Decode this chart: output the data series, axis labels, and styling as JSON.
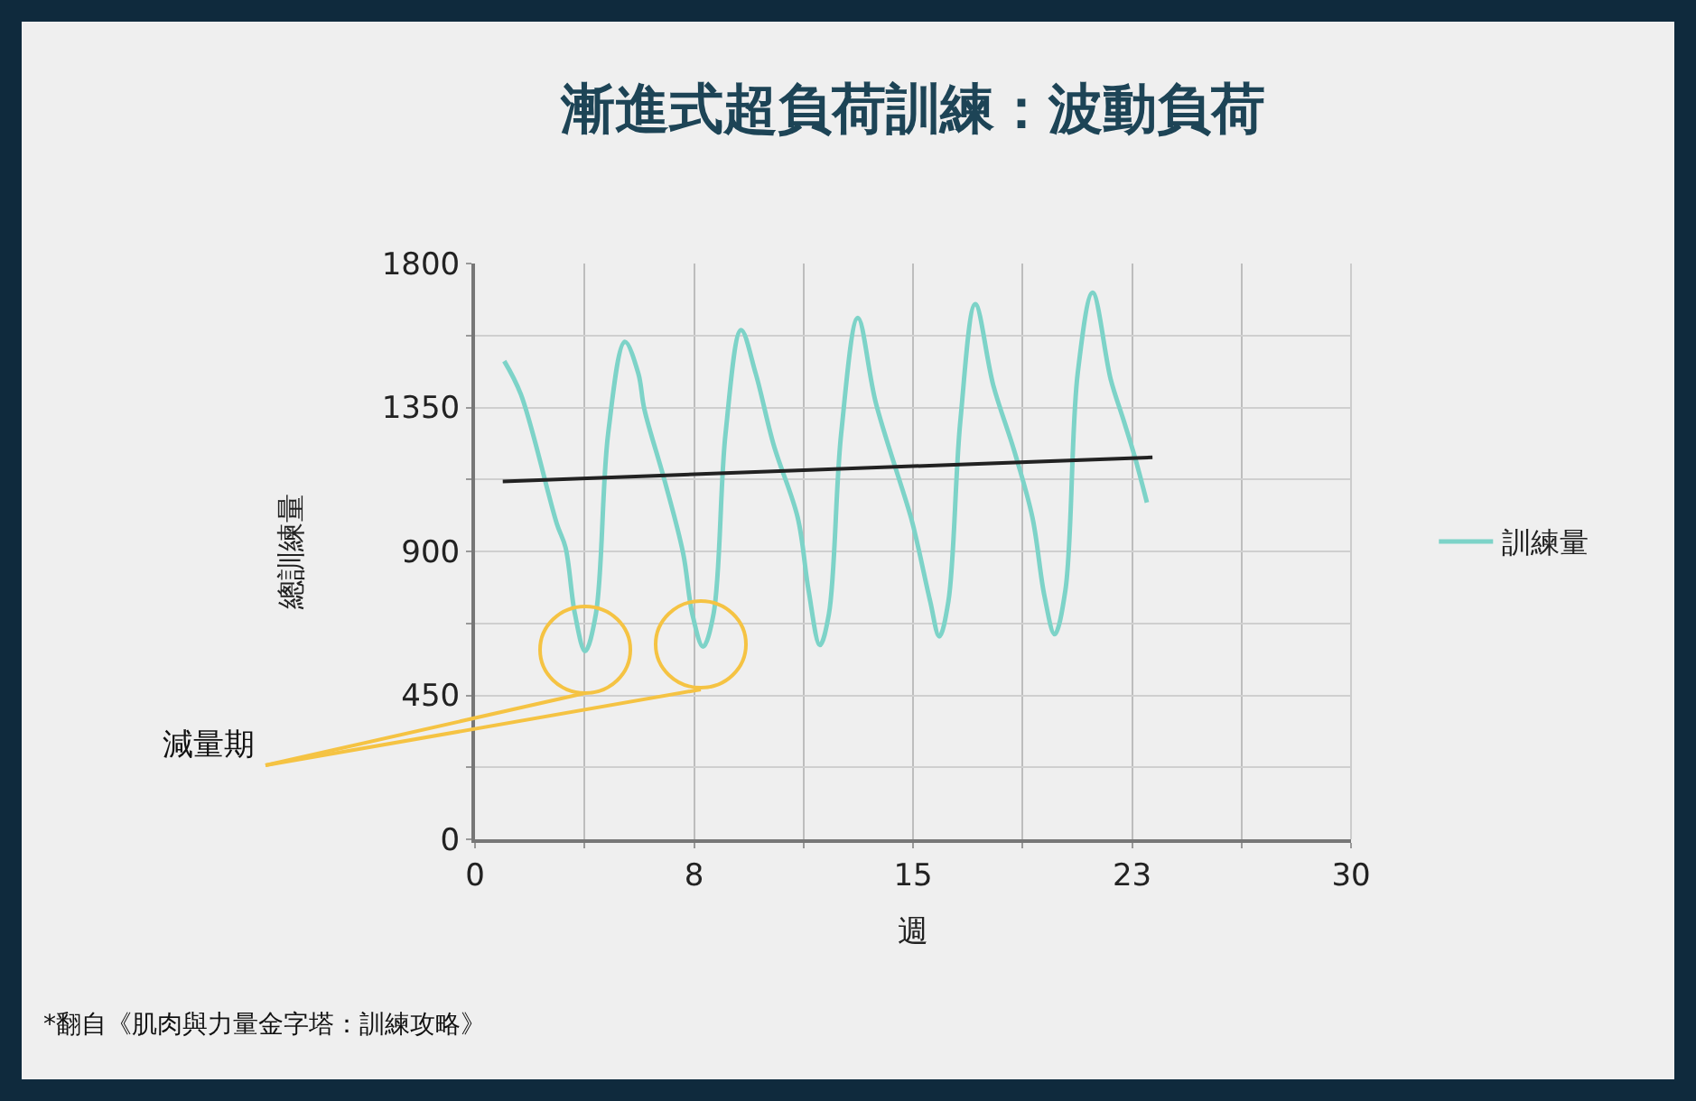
{
  "chart_data": {
    "type": "line",
    "title": "漸進式超負荷訓練：波動負荷",
    "xlabel": "週",
    "ylabel": "總訓練量",
    "series": [
      {
        "name": "訓練量",
        "color": "#7dd3c8",
        "x": [
          1,
          1.57,
          2.8,
          3.1,
          3.42,
          3.77,
          4.14,
          4.56,
          5.13,
          5.59,
          5.8,
          6.5,
          7.13,
          7.44,
          7.81,
          8.17,
          8.58,
          9.11,
          9.61,
          10.23,
          11.05,
          11.42,
          11.81,
          12.12,
          12.54,
          13.11,
          13.73,
          14.93,
          15.18,
          15.59,
          15.9,
          16.21,
          16.62,
          17.13,
          17.75,
          18.47,
          19.09,
          19.5,
          19.85,
          20.22,
          20.64,
          21.15,
          21.77,
          22.19,
          22.6,
          23.01
        ],
        "values": [
          1495,
          1391,
          987,
          912,
          705,
          588,
          705,
          1269,
          1555,
          1457,
          1344,
          1119,
          893,
          705,
          602,
          705,
          1269,
          1592,
          1457,
          1232,
          1006,
          780,
          607,
          705,
          1269,
          1630,
          1363,
          1006,
          912,
          743,
          634,
          743,
          1307,
          1673,
          1419,
          1213,
          1006,
          761,
          641,
          780,
          1457,
          1709,
          1438,
          1316,
          1194,
          1053
        ]
      },
      {
        "color": "#222222",
        "x": [
          0.95,
          23.2
        ],
        "values": [
          1119,
          1194
        ]
      }
    ],
    "xlim": [
      0,
      30
    ],
    "ylim": [
      0,
      1800
    ],
    "xticks": [
      0,
      {
        "value": 3.75,
        "label": null
      },
      {
        "value": 7.5,
        "label": "8"
      },
      {
        "value": 11.25,
        "label": null
      },
      15,
      {
        "value": 18.75,
        "label": null
      },
      {
        "value": 22.5,
        "label": "23"
      },
      {
        "value": 26.25,
        "label": null
      },
      30
    ],
    "yticks": [
      0,
      {
        "value": 225,
        "label": null
      },
      450,
      {
        "value": 675,
        "label": null
      },
      900,
      {
        "value": 1125,
        "label": null
      },
      1350,
      {
        "value": 1575,
        "label": null
      },
      1800
    ],
    "grid": true,
    "legend": "right",
    "marker": "none",
    "annotations": [
      "減量期",
      "*翻自《肌肉與力量金字塔：訓練攻略》"
    ]
  }
}
